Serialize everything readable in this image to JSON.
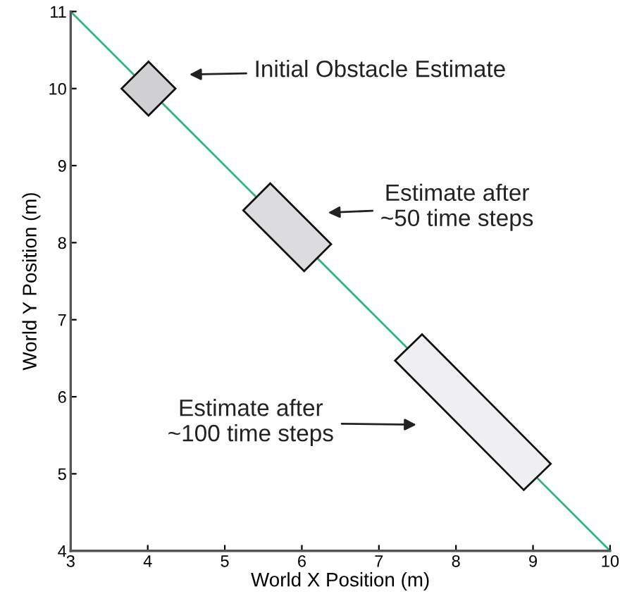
{
  "chart_data": {
    "type": "line",
    "xlabel": "World X Position (m)",
    "ylabel": "World Y Position (m)",
    "xlim": [
      3,
      10
    ],
    "ylim": [
      4,
      11
    ],
    "xticks": [
      3,
      4,
      5,
      6,
      7,
      8,
      9,
      10
    ],
    "yticks": [
      4,
      5,
      6,
      7,
      8,
      9,
      10,
      11
    ],
    "grid": false,
    "marker": "none",
    "line_style": "solid",
    "series": [
      {
        "color": "#2db87a",
        "x": [
          3,
          10
        ],
        "values": [
          11,
          4
        ]
      },
      {
        "type": "area",
        "color": "#d0d0d2",
        "x": [
          4.01,
          4.36,
          4.01,
          3.66,
          4.01
        ],
        "values": [
          10.35,
          10.0,
          9.65,
          10.0,
          10.35
        ]
      },
      {
        "type": "area",
        "color": "#dcdcde",
        "x": [
          5.59,
          6.38,
          6.03,
          5.24,
          5.59
        ],
        "values": [
          8.77,
          7.98,
          7.63,
          8.42,
          8.77
        ]
      },
      {
        "type": "area",
        "color": "#f0f0f2",
        "x": [
          7.56,
          9.23,
          8.88,
          7.21,
          7.56
        ],
        "values": [
          6.81,
          5.13,
          4.79,
          6.47,
          6.81
        ]
      }
    ],
    "annotations": [
      "Initial Obstacle Estimate",
      "Estimate after\n~50 time steps",
      "Estimate after\n~100 time steps"
    ]
  }
}
